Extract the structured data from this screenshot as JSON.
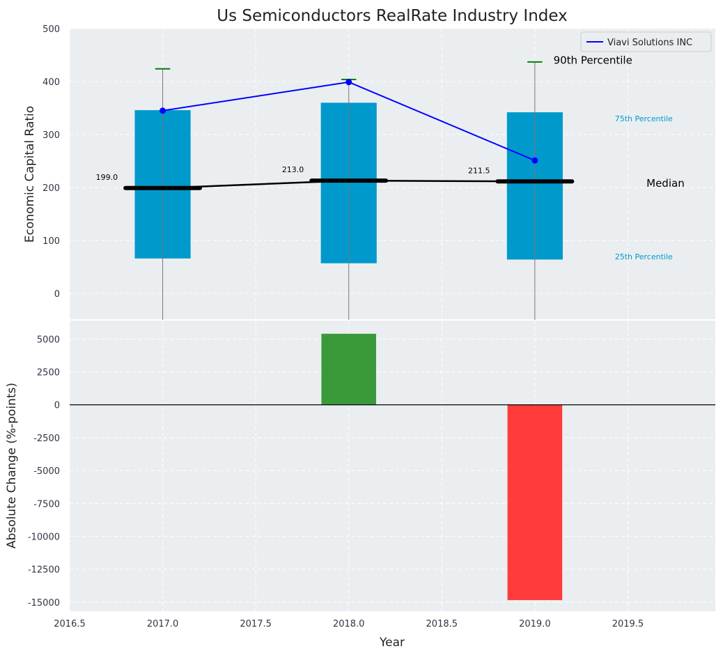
{
  "chart_data": [
    {
      "type": "bar",
      "title": "Us Semiconductors RealRate Industry Index",
      "xlabel": "",
      "ylabel": "Economic Capital Ratio",
      "ylim": [
        -50,
        500
      ],
      "yticks": [
        0,
        100,
        200,
        300,
        400,
        500
      ],
      "x": [
        2017,
        2018,
        2019
      ],
      "p25": [
        66,
        57,
        64
      ],
      "p75": [
        346,
        360,
        342
      ],
      "p90": [
        424,
        404,
        437
      ],
      "median": [
        199.0,
        213.0,
        211.5
      ],
      "median_labels": [
        "199.0",
        "213.0",
        "211.5"
      ],
      "series": [
        {
          "name": "Viavi Solutions INC",
          "values": [
            345,
            399,
            251
          ],
          "color": "#0000ff"
        }
      ],
      "legend": "top-right",
      "annotations": {
        "p90": "90th Percentile",
        "p75": "75th Percentile",
        "p25": "25th Percentile",
        "median": "Median"
      },
      "colors": {
        "box": "#0099cc",
        "p90": "#008000",
        "median": "#000000"
      },
      "grid": true
    },
    {
      "type": "bar",
      "xlabel": "Year",
      "ylabel": "Absolute Change (%-points)",
      "ylim": [
        -15700,
        6450
      ],
      "yticks": [
        5000,
        2500,
        0,
        -2500,
        -5000,
        -7500,
        -10000,
        -12500,
        -15000
      ],
      "xlim": [
        2016.5,
        2019.97
      ],
      "xticks": [
        2016.5,
        2017.0,
        2017.5,
        2018.0,
        2018.5,
        2019.0,
        2019.5
      ],
      "x": [
        2018,
        2019
      ],
      "values": [
        5400,
        -14850
      ],
      "colors": {
        "positive": "#3a9a3a",
        "negative": "#ff3b3b"
      },
      "grid": true
    }
  ]
}
